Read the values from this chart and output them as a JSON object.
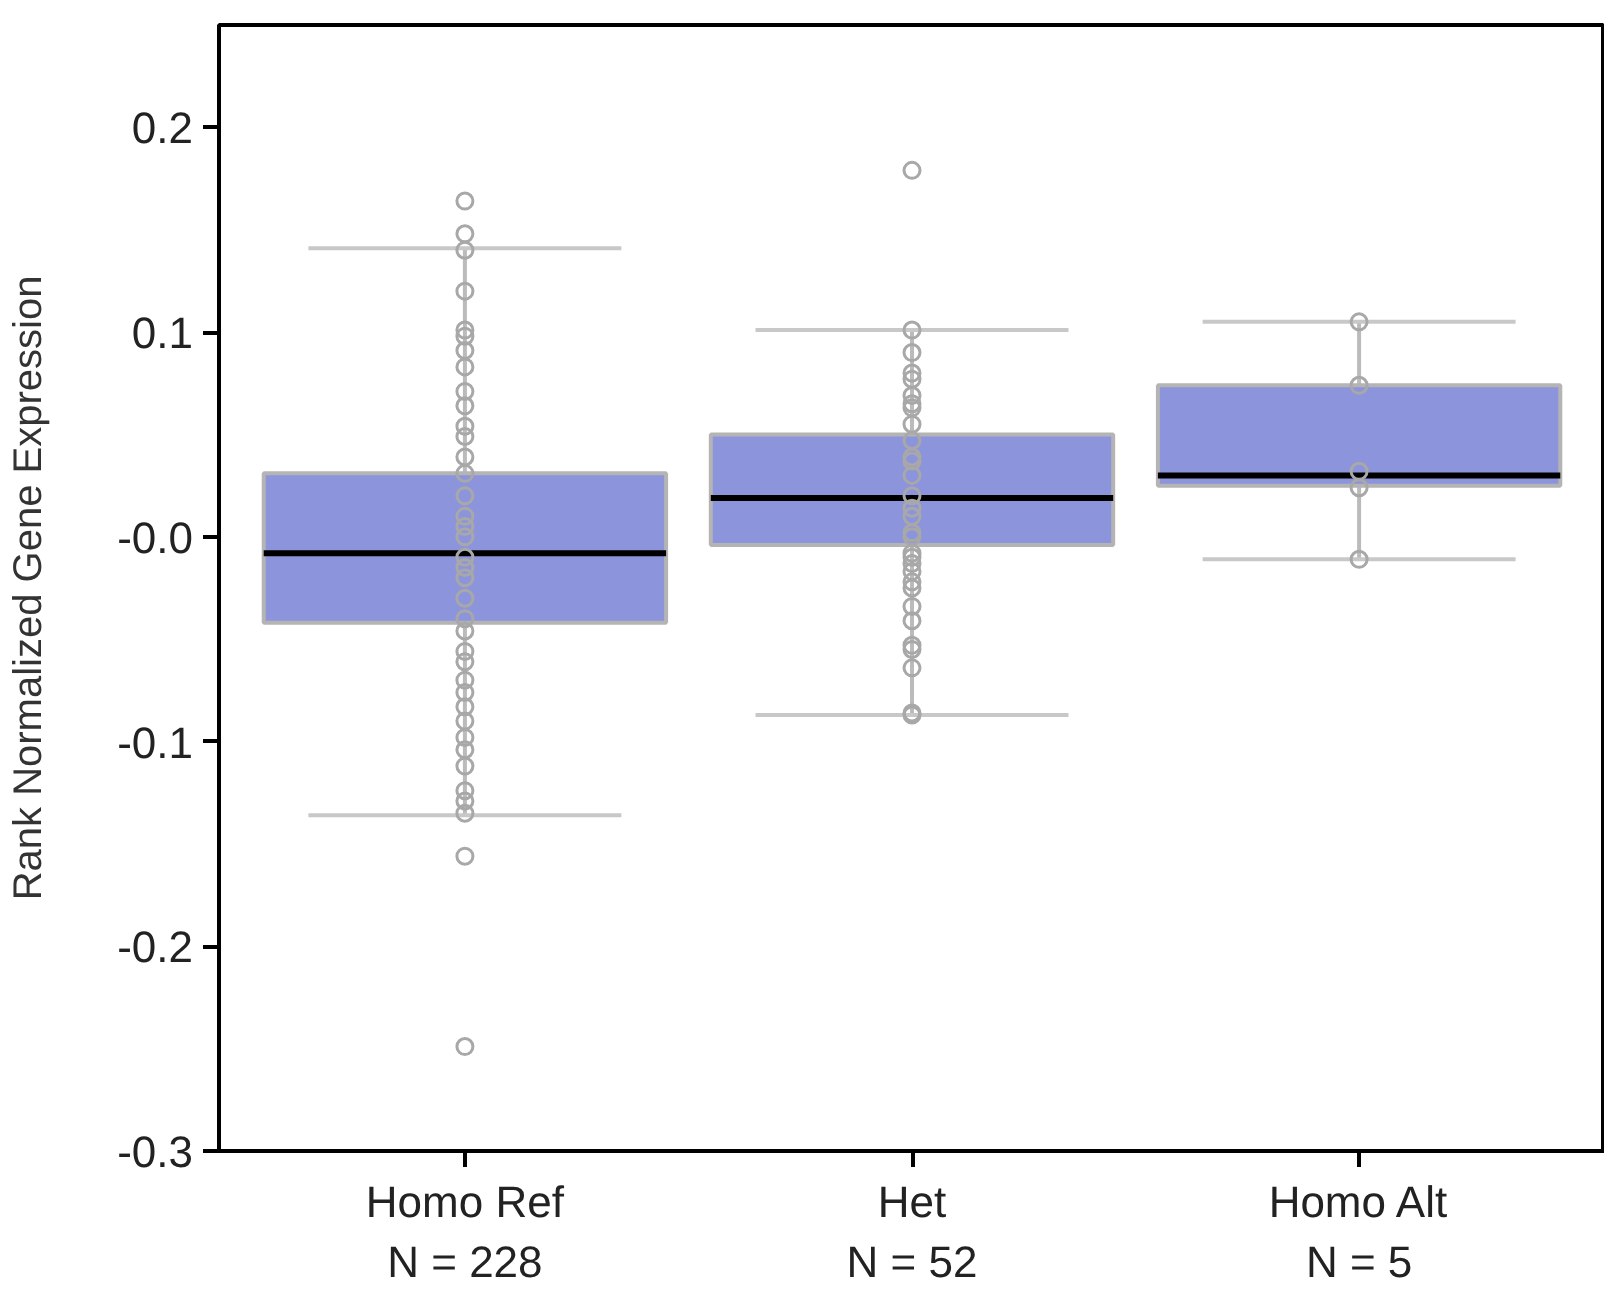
{
  "chart_data": {
    "type": "box",
    "ylabel": "Rank Normalized Gene Expression",
    "categories": [
      "Homo Ref\nN = 228",
      "Het\nN = 52",
      "Homo Alt\nN = 5"
    ],
    "ylim": [
      -0.3,
      0.25
    ],
    "yticks": [
      {
        "value": -0.3,
        "label": "-0.3"
      },
      {
        "value": -0.2,
        "label": "-0.2"
      },
      {
        "value": -0.1,
        "label": "-0.1"
      },
      {
        "value": 0,
        "label": "-0.0"
      },
      {
        "value": 0.1,
        "label": "0.1"
      },
      {
        "value": 0.2,
        "label": "0.2"
      }
    ],
    "grid": false,
    "marker": "circle",
    "series": [
      {
        "color": "#8c94dc",
        "boxes": [
          {
            "low": -0.136,
            "q1": -0.042,
            "median": -0.008,
            "q3": 0.031,
            "high": 0.141
          },
          {
            "low": -0.087,
            "q1": -0.004,
            "median": 0.019,
            "q3": 0.05,
            "high": 0.101
          },
          {
            "low": -0.011,
            "q1": 0.025,
            "median": 0.03,
            "q3": 0.074,
            "high": 0.105
          }
        ]
      },
      {
        "type": "scatter",
        "color": "#a8a8a8",
        "x": [
          "Homo Ref\nN = 228",
          "Homo Ref\nN = 228",
          "Homo Ref\nN = 228",
          "Homo Ref\nN = 228",
          "Homo Ref\nN = 228",
          "Homo Ref\nN = 228",
          "Homo Ref\nN = 228",
          "Homo Ref\nN = 228",
          "Homo Ref\nN = 228",
          "Homo Ref\nN = 228",
          "Homo Ref\nN = 228",
          "Homo Ref\nN = 228",
          "Homo Ref\nN = 228",
          "Homo Ref\nN = 228",
          "Homo Ref\nN = 228",
          "Homo Ref\nN = 228",
          "Homo Ref\nN = 228",
          "Homo Ref\nN = 228",
          "Homo Ref\nN = 228",
          "Homo Ref\nN = 228",
          "Homo Ref\nN = 228",
          "Homo Ref\nN = 228",
          "Homo Ref\nN = 228",
          "Homo Ref\nN = 228",
          "Homo Ref\nN = 228",
          "Homo Ref\nN = 228",
          "Homo Ref\nN = 228",
          "Homo Ref\nN = 228",
          "Homo Ref\nN = 228",
          "Homo Ref\nN = 228",
          "Homo Ref\nN = 228",
          "Homo Ref\nN = 228",
          "Homo Ref\nN = 228",
          "Homo Ref\nN = 228",
          "Homo Ref\nN = 228",
          "Homo Ref\nN = 228",
          "Homo Ref\nN = 228",
          "Homo Ref\nN = 228",
          "Het\nN = 52",
          "Het\nN = 52",
          "Het\nN = 52",
          "Het\nN = 52",
          "Het\nN = 52",
          "Het\nN = 52",
          "Het\nN = 52",
          "Het\nN = 52",
          "Het\nN = 52",
          "Het\nN = 52",
          "Het\nN = 52",
          "Het\nN = 52",
          "Het\nN = 52",
          "Het\nN = 52",
          "Het\nN = 52",
          "Het\nN = 52",
          "Het\nN = 52",
          "Het\nN = 52",
          "Het\nN = 52",
          "Het\nN = 52",
          "Het\nN = 52",
          "Het\nN = 52",
          "Het\nN = 52",
          "Het\nN = 52",
          "Het\nN = 52",
          "Het\nN = 52",
          "Het\nN = 52",
          "Het\nN = 52",
          "Het\nN = 52",
          "Het\nN = 52",
          "Het\nN = 52",
          "Homo Alt\nN = 5",
          "Homo Alt\nN = 5",
          "Homo Alt\nN = 5",
          "Homo Alt\nN = 5",
          "Homo Alt\nN = 5"
        ],
        "values": [
          0.164,
          0.148,
          0.14,
          0.12,
          0.101,
          0.098,
          0.091,
          0.083,
          0.071,
          0.064,
          0.054,
          0.049,
          0.039,
          0.031,
          0.02,
          0.01,
          0.0,
          -0.01,
          -0.02,
          -0.03,
          -0.046,
          -0.056,
          -0.061,
          -0.07,
          -0.076,
          -0.083,
          -0.09,
          -0.098,
          -0.104,
          -0.112,
          -0.124,
          -0.129,
          -0.135,
          -0.156,
          -0.249,
          0.005,
          -0.015,
          -0.04,
          0.179,
          0.101,
          0.09,
          0.08,
          0.077,
          0.069,
          0.065,
          0.063,
          0.055,
          0.047,
          0.039,
          0.037,
          0.03,
          0.02,
          0.014,
          0.01,
          0.002,
          0.0,
          -0.008,
          -0.01,
          -0.013,
          -0.017,
          -0.022,
          -0.025,
          -0.034,
          -0.041,
          -0.053,
          -0.055,
          -0.064,
          -0.086,
          -0.087,
          0.105,
          0.074,
          0.032,
          0.024,
          -0.011
        ]
      }
    ]
  }
}
